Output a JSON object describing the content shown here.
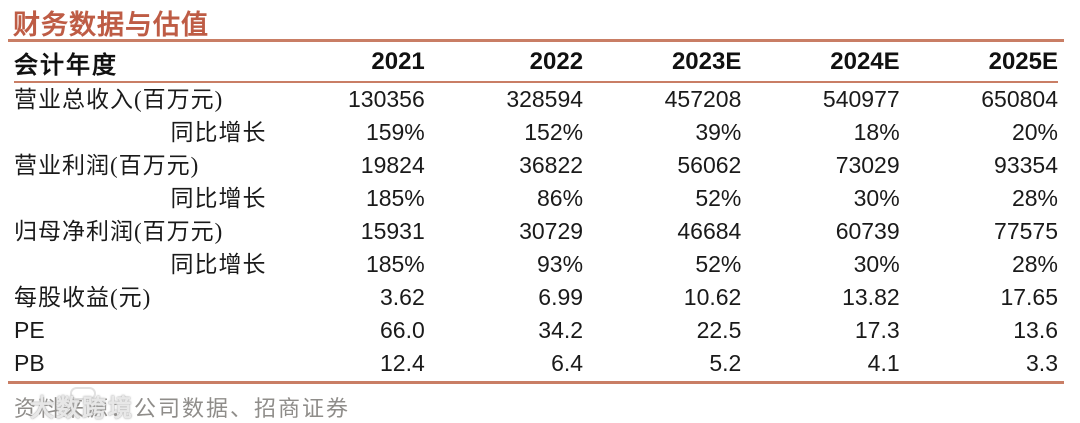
{
  "title": "财务数据与估值",
  "table": {
    "header": [
      "会计年度",
      "2021",
      "2022",
      "2023E",
      "2024E",
      "2025E"
    ],
    "rows": [
      {
        "label": "营业总收入(百万元)",
        "values": [
          "130356",
          "328594",
          "457208",
          "540977",
          "650804"
        ]
      },
      {
        "label": "同比增长",
        "values": [
          "159%",
          "152%",
          "39%",
          "18%",
          "20%"
        ]
      },
      {
        "label": "营业利润(百万元)",
        "values": [
          "19824",
          "36822",
          "56062",
          "73029",
          "93354"
        ]
      },
      {
        "label": "同比增长",
        "values": [
          "185%",
          "86%",
          "52%",
          "30%",
          "28%"
        ]
      },
      {
        "label": "归母净利润(百万元)",
        "values": [
          "15931",
          "30729",
          "46684",
          "60739",
          "77575"
        ]
      },
      {
        "label": "同比增长",
        "values": [
          "185%",
          "93%",
          "52%",
          "30%",
          "28%"
        ]
      },
      {
        "label": "每股收益(元)",
        "values": [
          "3.62",
          "6.99",
          "10.62",
          "13.82",
          "17.65"
        ]
      },
      {
        "label": "PE",
        "values": [
          "66.0",
          "34.2",
          "22.5",
          "17.3",
          "13.6"
        ]
      },
      {
        "label": "PB",
        "values": [
          "12.4",
          "6.4",
          "5.2",
          "4.1",
          "3.3"
        ]
      }
    ]
  },
  "footer": {
    "source": "资料来源：公司数据、招商证券",
    "watermark": "大数跨境"
  },
  "colors": {
    "accent_title": "#BE5C45",
    "rule": "#C97E65",
    "body_text": "#1A1A1A",
    "source_text": "#8F8D8A"
  }
}
